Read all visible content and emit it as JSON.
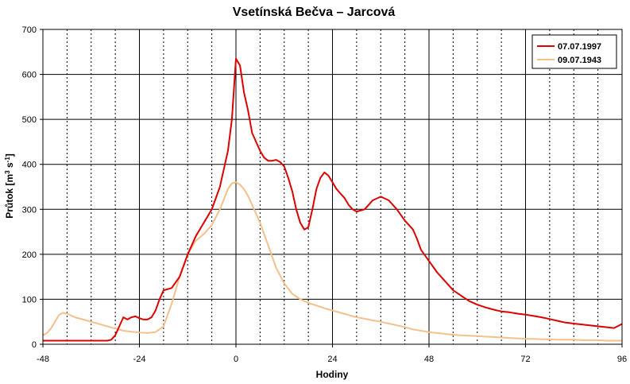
{
  "chart_data": {
    "type": "line",
    "title": "Vsetínská Bečva – Jarcová",
    "xlabel": "Hodiny",
    "ylabel": {
      "main": "Průtok [m",
      "sup1": "3",
      "mid": " s",
      "sup2": "-1",
      "end": "]"
    },
    "xlim": [
      -48,
      96
    ],
    "ylim": [
      0,
      700
    ],
    "xticks": [
      -48,
      -24,
      0,
      24,
      48,
      72,
      96
    ],
    "yticks": [
      0,
      100,
      200,
      300,
      400,
      500,
      600,
      700
    ],
    "minor_x_gridlines_dotted_step": 6,
    "grid": true,
    "legend_position": "top-right",
    "series": [
      {
        "name": "07.07.1997",
        "color": "#dd0000",
        "x": [
          -48,
          -36,
          -32,
          -31,
          -30,
          -29,
          -28,
          -27,
          -26,
          -25,
          -24,
          -23,
          -22,
          -21,
          -20,
          -19,
          -18,
          -16,
          -14,
          -12,
          -10,
          -8,
          -6,
          -4,
          -2,
          -1,
          0,
          1,
          2,
          3,
          4,
          5,
          6,
          7,
          8,
          9,
          10,
          11,
          12,
          13,
          14,
          15,
          16,
          17,
          18,
          19,
          20,
          21,
          22,
          23,
          24,
          25,
          26,
          27,
          28,
          29,
          30,
          32,
          34,
          36,
          38,
          40,
          42,
          44,
          45,
          46,
          48,
          50,
          52,
          54,
          56,
          58,
          60,
          62,
          64,
          66,
          68,
          70,
          72,
          74,
          76,
          78,
          80,
          82,
          84,
          86,
          88,
          90,
          92,
          94,
          96
        ],
        "y": [
          8,
          8,
          8,
          10,
          20,
          40,
          60,
          55,
          60,
          62,
          58,
          55,
          55,
          60,
          75,
          100,
          120,
          125,
          150,
          200,
          240,
          270,
          300,
          350,
          430,
          500,
          635,
          620,
          560,
          520,
          470,
          450,
          430,
          415,
          408,
          408,
          410,
          405,
          395,
          370,
          340,
          300,
          270,
          255,
          260,
          300,
          345,
          370,
          382,
          375,
          360,
          345,
          335,
          325,
          310,
          300,
          295,
          300,
          320,
          328,
          320,
          300,
          275,
          255,
          235,
          210,
          185,
          160,
          140,
          120,
          108,
          96,
          88,
          82,
          77,
          73,
          71,
          68,
          66,
          63,
          60,
          56,
          52,
          48,
          46,
          44,
          42,
          40,
          38,
          36,
          45
        ]
      },
      {
        "name": "09.07.1943",
        "color": "#f5c08a",
        "x": [
          -48,
          -47,
          -46,
          -45,
          -44,
          -43,
          -42,
          -40,
          -38,
          -36,
          -34,
          -32,
          -30,
          -28,
          -26,
          -24,
          -22,
          -20,
          -18,
          -16,
          -14,
          -12,
          -10,
          -8,
          -6,
          -4,
          -2,
          -1,
          0,
          1,
          2,
          3,
          4,
          6,
          8,
          10,
          12,
          14,
          16,
          18,
          20,
          22,
          24,
          26,
          28,
          30,
          32,
          34,
          36,
          38,
          40,
          42,
          44,
          46,
          48,
          50,
          52,
          54,
          56,
          58,
          60,
          62,
          64,
          66,
          68,
          70,
          72,
          74,
          76,
          78,
          80,
          82,
          84,
          86,
          88,
          90,
          92,
          94,
          96
        ],
        "y": [
          20,
          25,
          35,
          50,
          65,
          70,
          68,
          60,
          55,
          50,
          45,
          40,
          35,
          30,
          28,
          26,
          25,
          27,
          40,
          90,
          150,
          200,
          230,
          245,
          265,
          300,
          345,
          358,
          360,
          355,
          345,
          330,
          310,
          270,
          220,
          170,
          135,
          112,
          100,
          92,
          86,
          80,
          75,
          70,
          65,
          60,
          57,
          53,
          50,
          46,
          42,
          38,
          33,
          30,
          27,
          25,
          23,
          21,
          20,
          19,
          18,
          17,
          16,
          15,
          14,
          13,
          12,
          12,
          11,
          11,
          10,
          10,
          10,
          9,
          9,
          9,
          8,
          8,
          8
        ]
      }
    ]
  }
}
